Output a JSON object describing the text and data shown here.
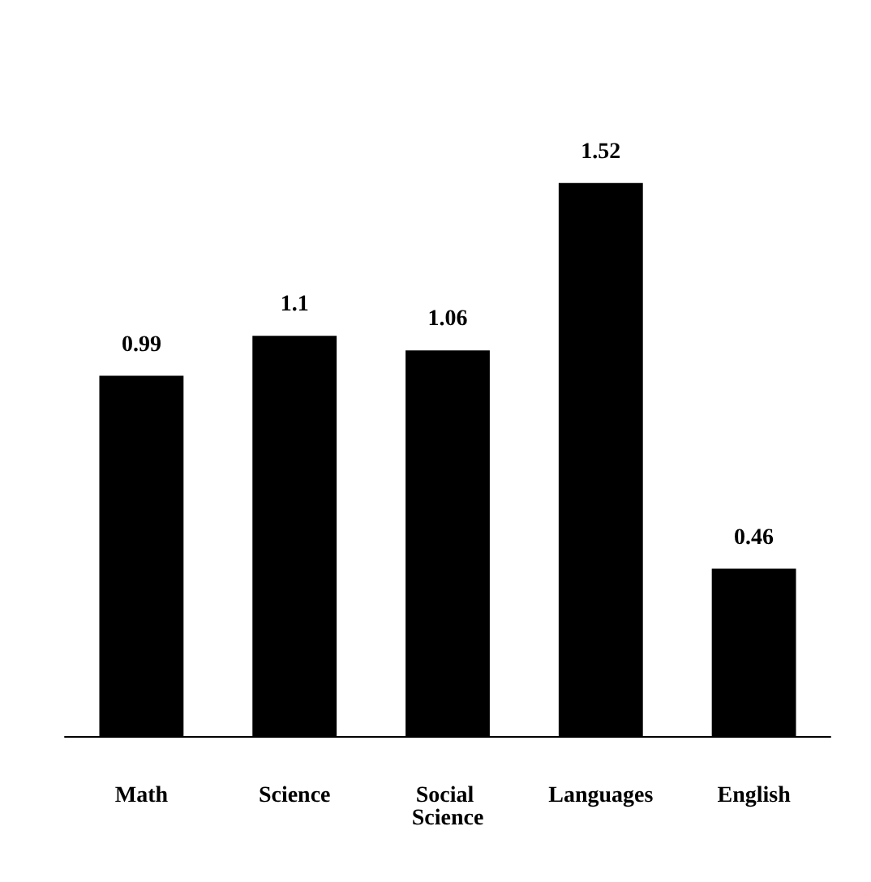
{
  "chart_data": {
    "type": "bar",
    "categories": [
      "Math",
      "Science",
      "Social Science",
      "Languages",
      "English"
    ],
    "values": [
      0.99,
      1.1,
      1.06,
      1.52,
      0.46
    ],
    "color": "#000000",
    "data_labels": true
  }
}
